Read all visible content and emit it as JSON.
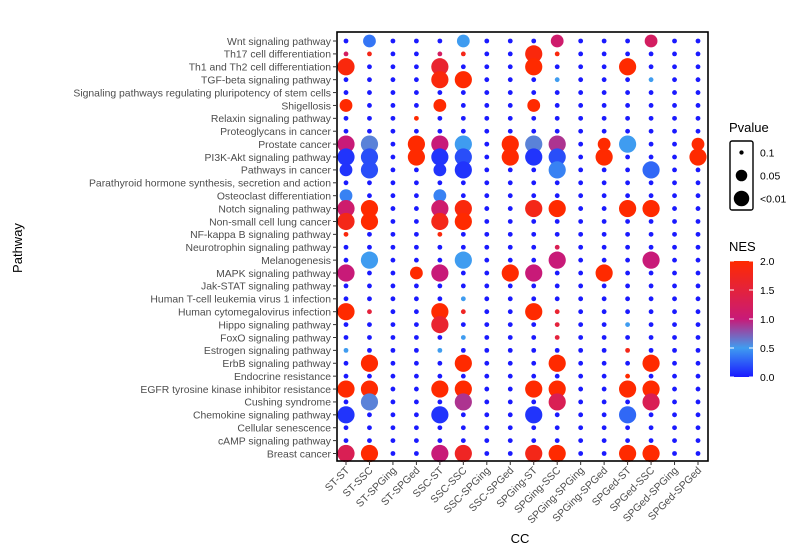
{
  "chart_data": {
    "type": "scatter",
    "title": "",
    "xlabel": "CC",
    "ylabel": "Pathway",
    "x_categories": [
      "ST-ST",
      "ST-SSC",
      "ST-SPGing",
      "ST-SPGed",
      "SSC-ST",
      "SSC-SSC",
      "SSC-SPGing",
      "SSC-SPGed",
      "SPGing-ST",
      "SPGing-SSC",
      "SPGing-SPGing",
      "SPGing-SPGed",
      "SPGed-ST",
      "SPGed-SSC",
      "SPGed-SPGing",
      "SPGed-SPGed"
    ],
    "y_categories": [
      "Wnt signaling pathway",
      "Th17 cell differentiation",
      "Th1 and Th2 cell differentiation",
      "TGF-beta signaling pathway",
      "Signaling pathways regulating pluripotency of stem cells",
      "Shigellosis",
      "Relaxin signaling pathway",
      "Proteoglycans in cancer",
      "Prostate cancer",
      "PI3K-Akt signaling pathway",
      "Pathways in cancer",
      "Parathyroid hormone synthesis, secretion and action",
      "Osteoclast differentiation",
      "Notch signaling pathway",
      "Non-small cell lung cancer",
      "NF-kappa B signaling pathway",
      "Neurotrophin signaling pathway",
      "Melanogenesis",
      "MAPK signaling pathway",
      "Jak-STAT signaling pathway",
      "Human T-cell leukemia virus 1 infection",
      "Human cytomegalovirus infection",
      "Hippo signaling pathway",
      "FoxO signaling pathway",
      "Estrogen signaling pathway",
      "ErbB signaling pathway",
      "Endocrine resistance",
      "EGFR tyrosine kinase inhibitor resistance",
      "Cushing syndrome",
      "Chemokine signaling pathway",
      "Cellular senescence",
      "cAMP signaling pathway",
      "Breast cancer"
    ],
    "points": [
      [
        "Wnt signaling pathway",
        "ST-SSC",
        0.03,
        0.35
      ],
      [
        "Wnt signaling pathway",
        "SSC-SSC",
        0.03,
        0.5
      ],
      [
        "Wnt signaling pathway",
        "SPGing-SSC",
        0.03,
        1.1
      ],
      [
        "Wnt signaling pathway",
        "SPGed-SSC",
        0.03,
        1.2
      ],
      [
        "Th17 cell differentiation",
        "ST-ST",
        0.08,
        1.2
      ],
      [
        "Th17 cell differentiation",
        "ST-SSC",
        0.08,
        1.8
      ],
      [
        "Th17 cell differentiation",
        "SSC-ST",
        0.08,
        1.2
      ],
      [
        "Th17 cell differentiation",
        "SSC-SSC",
        0.1,
        1.8
      ],
      [
        "Th17 cell differentiation",
        "SPGing-ST",
        0.01,
        1.9
      ],
      [
        "Th17 cell differentiation",
        "SPGing-SSC",
        0.08,
        1.9
      ],
      [
        "Th1 and Th2 cell differentiation",
        "ST-ST",
        0.01,
        1.9
      ],
      [
        "Th1 and Th2 cell differentiation",
        "SSC-ST",
        0.01,
        1.6
      ],
      [
        "Th1 and Th2 cell differentiation",
        "SPGing-ST",
        0.01,
        2.0
      ],
      [
        "Th1 and Th2 cell differentiation",
        "SPGed-ST",
        0.01,
        2.0
      ],
      [
        "TGF-beta signaling pathway",
        "SSC-ST",
        0.01,
        1.9
      ],
      [
        "TGF-beta signaling pathway",
        "SSC-SSC",
        0.01,
        2.0
      ],
      [
        "TGF-beta signaling pathway",
        "SPGing-SSC",
        0.1,
        0.5
      ],
      [
        "TGF-beta signaling pathway",
        "SPGed-SSC",
        0.1,
        0.5
      ],
      [
        "Shigellosis",
        "ST-ST",
        0.05,
        2.0
      ],
      [
        "Shigellosis",
        "SSC-ST",
        0.05,
        2.0
      ],
      [
        "Shigellosis",
        "SPGing-ST",
        0.05,
        2.0
      ],
      [
        "Relaxin signaling pathway",
        "ST-SPGed",
        0.1,
        2.0
      ],
      [
        "Prostate cancer",
        "ST-ST",
        0.01,
        1.0
      ],
      [
        "Prostate cancer",
        "ST-SSC",
        0.01,
        0.6
      ],
      [
        "Prostate cancer",
        "ST-SPGed",
        0.01,
        2.0
      ],
      [
        "Prostate cancer",
        "SSC-ST",
        0.01,
        1.0
      ],
      [
        "Prostate cancer",
        "SSC-SSC",
        0.01,
        0.5
      ],
      [
        "Prostate cancer",
        "SSC-SPGed",
        0.01,
        2.0
      ],
      [
        "Prostate cancer",
        "SPGing-ST",
        0.01,
        0.6
      ],
      [
        "Prostate cancer",
        "SPGing-SSC",
        0.01,
        0.9
      ],
      [
        "Prostate cancer",
        "SPGing-SPGed",
        0.05,
        2.0
      ],
      [
        "Prostate cancer",
        "SPGed-ST",
        0.01,
        0.5
      ],
      [
        "Prostate cancer",
        "SPGed-SPGed",
        0.05,
        2.0
      ],
      [
        "PI3K-Akt signaling pathway",
        "ST-ST",
        0.01,
        0.1
      ],
      [
        "PI3K-Akt signaling pathway",
        "ST-SSC",
        0.01,
        0.2
      ],
      [
        "PI3K-Akt signaling pathway",
        "ST-SPGed",
        0.01,
        2.0
      ],
      [
        "PI3K-Akt signaling pathway",
        "SSC-ST",
        0.01,
        0.1
      ],
      [
        "PI3K-Akt signaling pathway",
        "SSC-SSC",
        0.01,
        0.2
      ],
      [
        "PI3K-Akt signaling pathway",
        "SSC-SPGed",
        0.01,
        2.0
      ],
      [
        "PI3K-Akt signaling pathway",
        "SPGing-ST",
        0.01,
        0.1
      ],
      [
        "PI3K-Akt signaling pathway",
        "SPGing-SSC",
        0.01,
        0.2
      ],
      [
        "PI3K-Akt signaling pathway",
        "SPGing-SPGed",
        0.01,
        2.0
      ],
      [
        "PI3K-Akt signaling pathway",
        "SPGed-SPGed",
        0.01,
        2.0
      ],
      [
        "Pathways in cancer",
        "ST-ST",
        0.05,
        0.1
      ],
      [
        "Pathways in cancer",
        "ST-SSC",
        0.01,
        0.2
      ],
      [
        "Pathways in cancer",
        "SSC-ST",
        0.05,
        0.1
      ],
      [
        "Pathways in cancer",
        "SSC-SSC",
        0.01,
        0.1
      ],
      [
        "Pathways in cancer",
        "SPGing-SSC",
        0.01,
        0.4
      ],
      [
        "Pathways in cancer",
        "SPGed-SSC",
        0.01,
        0.3
      ],
      [
        "Osteoclast differentiation",
        "ST-ST",
        0.05,
        0.4
      ],
      [
        "Osteoclast differentiation",
        "SSC-ST",
        0.05,
        0.4
      ],
      [
        "Notch signaling pathway",
        "ST-ST",
        0.01,
        1.1
      ],
      [
        "Notch signaling pathway",
        "ST-SSC",
        0.01,
        2.0
      ],
      [
        "Notch signaling pathway",
        "SSC-ST",
        0.01,
        1.1
      ],
      [
        "Notch signaling pathway",
        "SSC-SSC",
        0.01,
        1.9
      ],
      [
        "Notch signaling pathway",
        "SPGing-ST",
        0.01,
        1.8
      ],
      [
        "Notch signaling pathway",
        "SPGing-SSC",
        0.01,
        2.0
      ],
      [
        "Notch signaling pathway",
        "SPGed-ST",
        0.01,
        2.0
      ],
      [
        "Notch signaling pathway",
        "SPGed-SSC",
        0.01,
        2.0
      ],
      [
        "Non-small cell lung cancer",
        "ST-ST",
        0.01,
        1.8
      ],
      [
        "Non-small cell lung cancer",
        "ST-SSC",
        0.01,
        2.0
      ],
      [
        "Non-small cell lung cancer",
        "SSC-ST",
        0.01,
        1.8
      ],
      [
        "Non-small cell lung cancer",
        "SSC-SSC",
        0.01,
        2.0
      ],
      [
        "NF-kappa B signaling pathway",
        "ST-ST",
        0.1,
        1.9
      ],
      [
        "NF-kappa B signaling pathway",
        "SSC-ST",
        0.1,
        1.9
      ],
      [
        "Neurotrophin signaling pathway",
        "SPGing-SSC",
        0.1,
        1.3
      ],
      [
        "Melanogenesis",
        "ST-SSC",
        0.01,
        0.5
      ],
      [
        "Melanogenesis",
        "SSC-SSC",
        0.01,
        0.5
      ],
      [
        "Melanogenesis",
        "SPGing-SSC",
        0.01,
        1.0
      ],
      [
        "Melanogenesis",
        "SPGed-SSC",
        0.01,
        1.0
      ],
      [
        "MAPK signaling pathway",
        "ST-ST",
        0.01,
        1.0
      ],
      [
        "MAPK signaling pathway",
        "ST-SPGed",
        0.05,
        2.0
      ],
      [
        "MAPK signaling pathway",
        "SSC-ST",
        0.01,
        1.0
      ],
      [
        "MAPK signaling pathway",
        "SSC-SPGed",
        0.01,
        2.0
      ],
      [
        "MAPK signaling pathway",
        "SPGing-ST",
        0.01,
        1.0
      ],
      [
        "MAPK signaling pathway",
        "SPGing-SPGed",
        0.01,
        2.0
      ],
      [
        "Human T-cell leukemia virus 1 infection",
        "SSC-SSC",
        0.1,
        0.5
      ],
      [
        "Human cytomegalovirus infection",
        "ST-ST",
        0.01,
        2.0
      ],
      [
        "Human cytomegalovirus infection",
        "ST-SSC",
        0.1,
        1.5
      ],
      [
        "Human cytomegalovirus infection",
        "SSC-ST",
        0.01,
        2.0
      ],
      [
        "Human cytomegalovirus infection",
        "SSC-SSC",
        0.1,
        1.7
      ],
      [
        "Human cytomegalovirus infection",
        "SPGing-ST",
        0.01,
        2.0
      ],
      [
        "Human cytomegalovirus infection",
        "SPGing-SSC",
        0.1,
        1.6
      ],
      [
        "Hippo signaling pathway",
        "SSC-ST",
        0.01,
        1.6
      ],
      [
        "Hippo signaling pathway",
        "SPGing-SSC",
        0.1,
        1.5
      ],
      [
        "Hippo signaling pathway",
        "SPGed-ST",
        0.1,
        0.5
      ],
      [
        "FoxO signaling pathway",
        "SSC-SSC",
        0.1,
        0.5
      ],
      [
        "FoxO signaling pathway",
        "SPGing-SSC",
        0.1,
        1.5
      ],
      [
        "Estrogen signaling pathway",
        "ST-ST",
        0.1,
        0.5
      ],
      [
        "Estrogen signaling pathway",
        "SSC-ST",
        0.1,
        0.5
      ],
      [
        "Estrogen signaling pathway",
        "SPGed-ST",
        0.1,
        1.8
      ],
      [
        "ErbB signaling pathway",
        "ST-SSC",
        0.01,
        2.0
      ],
      [
        "ErbB signaling pathway",
        "SSC-SSC",
        0.01,
        2.0
      ],
      [
        "ErbB signaling pathway",
        "SPGing-SSC",
        0.01,
        2.0
      ],
      [
        "ErbB signaling pathway",
        "SPGed-SSC",
        0.01,
        2.0
      ],
      [
        "Endocrine resistance",
        "SPGed-ST",
        0.1,
        2.0
      ],
      [
        "EGFR tyrosine kinase inhibitor resistance",
        "ST-ST",
        0.01,
        2.0
      ],
      [
        "EGFR tyrosine kinase inhibitor resistance",
        "ST-SSC",
        0.01,
        2.0
      ],
      [
        "EGFR tyrosine kinase inhibitor resistance",
        "SSC-ST",
        0.01,
        2.0
      ],
      [
        "EGFR tyrosine kinase inhibitor resistance",
        "SSC-SSC",
        0.01,
        2.0
      ],
      [
        "EGFR tyrosine kinase inhibitor resistance",
        "SPGing-ST",
        0.01,
        2.0
      ],
      [
        "EGFR tyrosine kinase inhibitor resistance",
        "SPGing-SSC",
        0.01,
        2.0
      ],
      [
        "EGFR tyrosine kinase inhibitor resistance",
        "SPGed-ST",
        0.01,
        2.0
      ],
      [
        "EGFR tyrosine kinase inhibitor resistance",
        "SPGed-SSC",
        0.01,
        2.0
      ],
      [
        "Cushing syndrome",
        "ST-SSC",
        0.01,
        0.6
      ],
      [
        "Cushing syndrome",
        "SSC-SSC",
        0.01,
        0.9
      ],
      [
        "Cushing syndrome",
        "SPGing-SSC",
        0.01,
        1.3
      ],
      [
        "Cushing syndrome",
        "SPGed-SSC",
        0.01,
        1.3
      ],
      [
        "Chemokine signaling pathway",
        "ST-ST",
        0.01,
        0.1
      ],
      [
        "Chemokine signaling pathway",
        "SSC-ST",
        0.01,
        0.1
      ],
      [
        "Chemokine signaling pathway",
        "SPGing-ST",
        0.01,
        0.1
      ],
      [
        "Chemokine signaling pathway",
        "SPGed-ST",
        0.01,
        0.3
      ],
      [
        "Breast cancer",
        "ST-ST",
        0.01,
        1.3
      ],
      [
        "Breast cancer",
        "ST-SSC",
        0.01,
        2.0
      ],
      [
        "Breast cancer",
        "SSC-ST",
        0.01,
        1.0
      ],
      [
        "Breast cancer",
        "SSC-SSC",
        0.01,
        1.7
      ],
      [
        "Breast cancer",
        "SPGing-ST",
        0.01,
        1.8
      ],
      [
        "Breast cancer",
        "SPGing-SSC",
        0.01,
        2.0
      ],
      [
        "Breast cancer",
        "SPGed-ST",
        0.01,
        2.0
      ],
      [
        "Breast cancer",
        "SPGed-SSC",
        0.01,
        2.0
      ]
    ],
    "background_point": {
      "pvalue": 0.1,
      "nes": 0.0
    },
    "size_legend": {
      "title": "Pvalue",
      "labels": [
        "0.1",
        "0.05",
        "<0.01"
      ],
      "values": [
        0.1,
        0.05,
        0.01
      ]
    },
    "color_legend": {
      "title": "NES",
      "range": [
        0.0,
        2.0
      ],
      "ticks": [
        "2.0",
        "1.5",
        "1.0",
        "0.5",
        "0.0"
      ],
      "tick_values": [
        2.0,
        1.5,
        1.0,
        0.5,
        0.0
      ]
    },
    "colors": {
      "low": "#1a1aff",
      "mid1": "#3f9cf0",
      "mid2": "#c81a78",
      "high": "#ff2a00",
      "background_dot": "#1a1aff"
    },
    "grid": false,
    "legend_placement": "right"
  }
}
